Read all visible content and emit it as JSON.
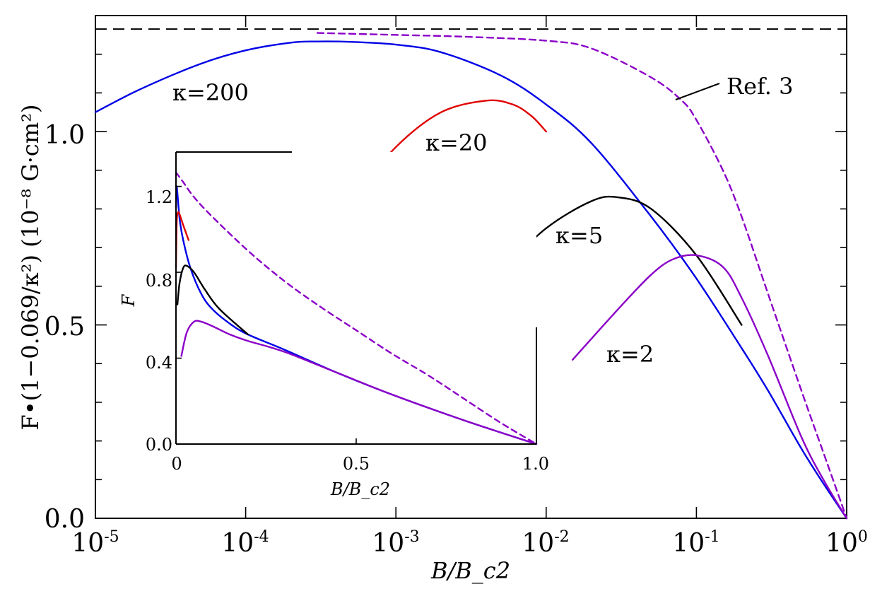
{
  "chart_data": [
    {
      "type": "line",
      "xlabel": "B/B_c2",
      "ylabel": "F•(1−0.069/κ²) (10⁻⁸ G·cm²)",
      "x_scale": "log",
      "xlim": [
        1e-05,
        1
      ],
      "ylim": [
        0,
        1.3
      ],
      "x_ticks": [
        1e-05,
        0.0001,
        0.001,
        0.01,
        0.1,
        1
      ],
      "x_tick_labels": [
        {
          "base": "10",
          "exp": "-5"
        },
        {
          "base": "10",
          "exp": "-4"
        },
        {
          "base": "10",
          "exp": "-3"
        },
        {
          "base": "10",
          "exp": "-2"
        },
        {
          "base": "10",
          "exp": "-1"
        },
        {
          "base": "10",
          "exp": "0"
        }
      ],
      "y_ticks": [
        0,
        0.5,
        1.0
      ],
      "y_tick_labels": [
        "0.0",
        "0.5",
        "1.0"
      ],
      "reference_line": {
        "y": 1.265,
        "style": "dashed",
        "color": "#000000"
      },
      "series": [
        {
          "name": "κ=200",
          "color": "#0000e6",
          "style": "solid",
          "x": [
            1e-05,
            2e-05,
            5e-05,
            0.0001,
            0.0002,
            0.0003,
            0.0005,
            0.001,
            0.002,
            0.005,
            0.01,
            0.02,
            0.05,
            0.1,
            0.2,
            0.3,
            0.5,
            0.7,
            1.0
          ],
          "y": [
            1.05,
            1.11,
            1.175,
            1.21,
            1.23,
            1.233,
            1.232,
            1.225,
            1.205,
            1.145,
            1.07,
            0.97,
            0.78,
            0.62,
            0.44,
            0.33,
            0.18,
            0.09,
            0.0
          ]
        },
        {
          "name": "κ=20",
          "color": "#e00000",
          "style": "solid",
          "x": [
            0.0005,
            0.001,
            0.002,
            0.004,
            0.006,
            0.008,
            0.01
          ],
          "y": [
            0.82,
            0.96,
            1.05,
            1.08,
            1.07,
            1.04,
            1.0
          ]
        },
        {
          "name": "κ=5",
          "color": "#000000",
          "style": "solid",
          "x": [
            0.005,
            0.01,
            0.02,
            0.03,
            0.05,
            0.1,
            0.2
          ],
          "y": [
            0.64,
            0.75,
            0.82,
            0.83,
            0.8,
            0.68,
            0.5
          ]
        },
        {
          "name": "κ=2",
          "color": "#8b00c8",
          "style": "solid",
          "x": [
            0.015,
            0.03,
            0.05,
            0.07,
            0.1,
            0.15,
            0.2,
            0.3,
            0.5,
            0.7,
            1.0
          ],
          "y": [
            0.41,
            0.54,
            0.63,
            0.67,
            0.68,
            0.65,
            0.57,
            0.42,
            0.21,
            0.1,
            0.0
          ]
        },
        {
          "name": "Ref. 3",
          "color": "#8b00c8",
          "style": "dashed",
          "x": [
            0.0003,
            0.001,
            0.003,
            0.01,
            0.02,
            0.05,
            0.08,
            0.1,
            0.15,
            0.2,
            0.3,
            0.5,
            0.7,
            1.0
          ],
          "y": [
            1.255,
            1.25,
            1.245,
            1.235,
            1.215,
            1.14,
            1.08,
            1.03,
            0.9,
            0.78,
            0.58,
            0.33,
            0.17,
            0.0
          ]
        }
      ],
      "labels": [
        {
          "text": "κ=200",
          "series": "κ=200"
        },
        {
          "text": "κ=20",
          "series": "κ=20"
        },
        {
          "text": "κ=5",
          "series": "κ=5"
        },
        {
          "text": "κ=2",
          "series": "κ=2"
        },
        {
          "text": "Ref. 3",
          "series": "Ref. 3"
        }
      ]
    },
    {
      "type": "line",
      "inset": true,
      "xlabel": "B/B_c2",
      "ylabel": "F",
      "xlim": [
        0,
        1.0
      ],
      "ylim": [
        0,
        1.36
      ],
      "x_ticks": [
        0,
        0.5,
        1.0
      ],
      "x_tick_labels": [
        "0",
        "0.5",
        "1.0"
      ],
      "y_ticks": [
        0,
        0.4,
        0.8,
        1.2
      ],
      "y_tick_labels": [
        "0.0",
        "0.4",
        "0.8",
        "1.2"
      ],
      "series": [
        {
          "name": "κ=200",
          "color": "#0000e6",
          "style": "solid",
          "x": [
            0.0,
            0.002,
            0.01,
            0.02,
            0.04,
            0.07,
            0.1,
            0.15,
            0.2,
            0.3,
            0.45,
            0.6,
            0.8,
            1.0
          ],
          "y": [
            1.1,
            1.2,
            1.05,
            0.95,
            0.82,
            0.7,
            0.63,
            0.56,
            0.51,
            0.44,
            0.33,
            0.23,
            0.11,
            0.0
          ]
        },
        {
          "name": "κ=20",
          "color": "#e00000",
          "style": "solid",
          "x": [
            0.0,
            0.0015,
            0.003,
            0.006,
            0.01,
            0.02,
            0.035
          ],
          "y": [
            0.82,
            1.0,
            1.06,
            1.08,
            1.07,
            1.02,
            0.95
          ]
        },
        {
          "name": "κ=5",
          "color": "#000000",
          "style": "solid",
          "x": [
            0.004,
            0.01,
            0.02,
            0.03,
            0.05,
            0.08,
            0.12,
            0.2
          ],
          "y": [
            0.65,
            0.75,
            0.82,
            0.83,
            0.8,
            0.72,
            0.63,
            0.51
          ]
        },
        {
          "name": "κ=2",
          "color": "#8b00c8",
          "style": "solid",
          "x": [
            0.015,
            0.03,
            0.05,
            0.07,
            0.1,
            0.15,
            0.2,
            0.3,
            0.45,
            0.6,
            0.8,
            1.0
          ],
          "y": [
            0.41,
            0.52,
            0.57,
            0.57,
            0.55,
            0.51,
            0.48,
            0.43,
            0.33,
            0.23,
            0.11,
            0.0
          ]
        },
        {
          "name": "Ref. 3",
          "color": "#8b00c8",
          "style": "dashed",
          "x": [
            0.0,
            0.02,
            0.05,
            0.1,
            0.2,
            0.3,
            0.4,
            0.5,
            0.6,
            0.7,
            0.8,
            0.9,
            1.0
          ],
          "y": [
            1.265,
            1.22,
            1.15,
            1.06,
            0.9,
            0.76,
            0.64,
            0.53,
            0.42,
            0.32,
            0.21,
            0.1,
            0.0
          ]
        }
      ]
    }
  ]
}
